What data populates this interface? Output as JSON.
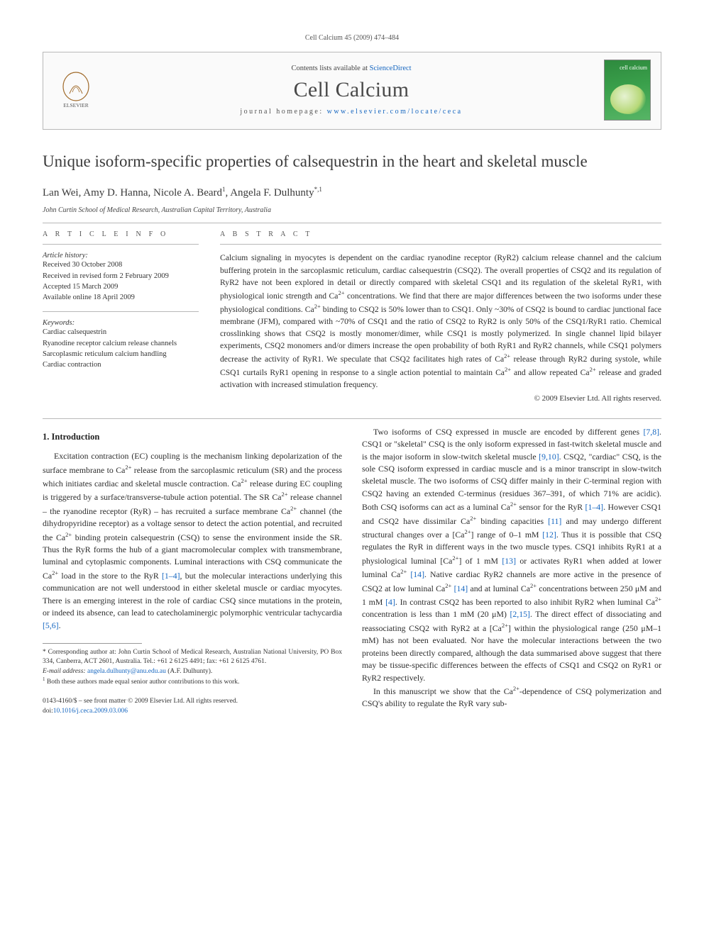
{
  "running_head": "Cell Calcium 45 (2009) 474–484",
  "header": {
    "contents_prefix": "Contents lists available at ",
    "contents_link": "ScienceDirect",
    "journal": "Cell Calcium",
    "homepage_prefix": "journal homepage: ",
    "homepage_url": "www.elsevier.com/locate/ceca",
    "cover_label": "cell calcium"
  },
  "title": "Unique isoform-specific properties of calsequestrin in the heart and skeletal muscle",
  "authors_line": "Lan Wei, Amy D. Hanna, Nicole A. Beard",
  "authors_suffix_1": "1",
  "authors_last": ", Angela F. Dulhunty",
  "authors_suffix_2": "*,1",
  "affiliation": "John Curtin School of Medical Research, Australian Capital Territory, Australia",
  "info": {
    "head": "A R T I C L E   I N F O",
    "history_label": "Article history:",
    "history": [
      "Received 30 October 2008",
      "Received in revised form 2 February 2009",
      "Accepted 15 March 2009",
      "Available online 18 April 2009"
    ],
    "keywords_label": "Keywords:",
    "keywords": [
      "Cardiac calsequestrin",
      "Ryanodine receptor calcium release channels",
      "Sarcoplasmic reticulum calcium handling",
      "Cardiac contraction"
    ]
  },
  "abstract": {
    "head": "A B S T R A C T",
    "text": "Calcium signaling in myocytes is dependent on the cardiac ryanodine receptor (RyR2) calcium release channel and the calcium buffering protein in the sarcoplasmic reticulum, cardiac calsequestrin (CSQ2). The overall properties of CSQ2 and its regulation of RyR2 have not been explored in detail or directly compared with skeletal CSQ1 and its regulation of the skeletal RyR1, with physiological ionic strength and Ca2+ concentrations. We find that there are major differences between the two isoforms under these physiological conditions. Ca2+ binding to CSQ2 is 50% lower than to CSQ1. Only ~30% of CSQ2 is bound to cardiac junctional face membrane (JFM), compared with ~70% of CSQ1 and the ratio of CSQ2 to RyR2 is only 50% of the CSQ1/RyR1 ratio. Chemical crosslinking shows that CSQ2 is mostly monomer/dimer, while CSQ1 is mostly polymerized. In single channel lipid bilayer experiments, CSQ2 monomers and/or dimers increase the open probability of both RyR1 and RyR2 channels, while CSQ1 polymers decrease the activity of RyR1. We speculate that CSQ2 facilitates high rates of Ca2+ release through RyR2 during systole, while CSQ1 curtails RyR1 opening in response to a single action potential to maintain Ca2+ and allow repeated Ca2+ release and graded activation with increased stimulation frequency.",
    "copyright": "© 2009 Elsevier Ltd. All rights reserved."
  },
  "body": {
    "section_number": "1.",
    "section_title": "Introduction",
    "para1": "Excitation contraction (EC) coupling is the mechanism linking depolarization of the surface membrane to Ca2+ release from the sarcoplasmic reticulum (SR) and the process which initiates cardiac and skeletal muscle contraction. Ca2+ release during EC coupling is triggered by a surface/transverse-tubule action potential. The SR Ca2+ release channel – the ryanodine receptor (RyR) – has recruited a surface membrane Ca2+ channel (the dihydropyridine receptor) as a voltage sensor to detect the action potential, and recruited the Ca2+ binding protein calsequestrin (CSQ) to sense the environment inside the SR. Thus the RyR forms the hub of a giant macromolecular complex with transmembrane, luminal and cytoplasmic components. Luminal interactions with CSQ communicate the Ca2+ load in the store to the RyR [1–4], but the molecular interactions underlying this communication are not well understood in either skeletal muscle or cardiac myocytes. There is an emerging interest in the role of cardiac CSQ since mutations in the protein, or indeed its absence, can lead to catecholaminergic polymorphic ventricular tachycardia [5,6].",
    "para2": "Two isoforms of CSQ expressed in muscle are encoded by different genes [7,8]. CSQ1 or \"skeletal\" CSQ is the only isoform expressed in fast-twitch skeletal muscle and is the major isoform in slow-twitch skeletal muscle [9,10]. CSQ2, \"cardiac\" CSQ, is the sole CSQ isoform expressed in cardiac muscle and is a minor transcript in slow-twitch skeletal muscle. The two isoforms of CSQ differ mainly in their C-terminal region with CSQ2 having an extended C-terminus (residues 367–391, of which 71% are acidic). Both CSQ isoforms can act as a luminal Ca2+ sensor for the RyR [1–4]. However CSQ1 and CSQ2 have dissimilar Ca2+ binding capacities [11] and may undergo different structural changes over a [Ca2+] range of 0–1 mM [12]. Thus it is possible that CSQ regulates the RyR in different ways in the two muscle types. CSQ1 inhibits RyR1 at a physiological luminal [Ca2+] of 1 mM [13] or activates RyR1 when added at lower luminal Ca2+ [14]. Native cardiac RyR2 channels are more active in the presence of CSQ2 at low luminal Ca2+ [14] and at luminal Ca2+ concentrations between 250 μM and 1 mM [4]. In contrast CSQ2 has been reported to also inhibit RyR2 when luminal Ca2+ concentration is less than 1 mM (20 μM) [2,15]. The direct effect of dissociating and reassociating CSQ2 with RyR2 at a [Ca2+] within the physiological range (250 μM–1 mM) has not been evaluated. Nor have the molecular interactions between the two proteins been directly compared, although the data summarised above suggest that there may be tissue-specific differences between the effects of CSQ1 and CSQ2 on RyR1 or RyR2 respectively.",
    "para3": "In this manuscript we show that the Ca2+-dependence of CSQ polymerization and CSQ's ability to regulate the RyR vary sub-"
  },
  "footnotes": {
    "corr": "* Corresponding author at: John Curtin School of Medical Research, Australian National University, PO Box 334, Canberra, ACT 2601, Australia. Tel.: +61 2 6125 4491; fax: +61 2 6125 4761.",
    "email_label": "E-mail address: ",
    "email": "angela.dulhunty@anu.edu.au",
    "email_suffix": " (A.F. Dulhunty).",
    "note1": "1 Both these authors made equal senior author contributions to this work.",
    "matter": "0143-4160/$ – see front matter © 2009 Elsevier Ltd. All rights reserved.",
    "doi_label": "doi:",
    "doi": "10.1016/j.ceca.2009.03.006"
  }
}
